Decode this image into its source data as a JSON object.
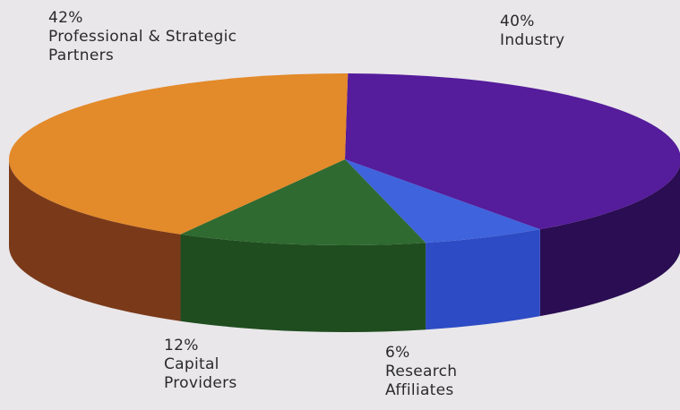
{
  "chart_data": {
    "type": "pie",
    "title": "",
    "style": "3d",
    "slices": [
      {
        "label_lines": [
          "Professional & Strategic",
          "Partners"
        ],
        "value": 42,
        "value_label": "42%",
        "color": "#e38a2a",
        "side_color": "#7a3a1a"
      },
      {
        "label_lines": [
          "Industry"
        ],
        "value": 40,
        "value_label": "40%",
        "color": "#551c9b",
        "side_color": "#2a0d52"
      },
      {
        "label_lines": [
          "Research",
          "Affiliates"
        ],
        "value": 6,
        "value_label": "6%",
        "color": "#3e63dc",
        "side_color": "#2d4bc4"
      },
      {
        "label_lines": [
          "Capital",
          "Providers"
        ],
        "value": 12,
        "value_label": "12%",
        "color": "#2f6a30",
        "side_color": "#1f4d1f"
      }
    ]
  }
}
